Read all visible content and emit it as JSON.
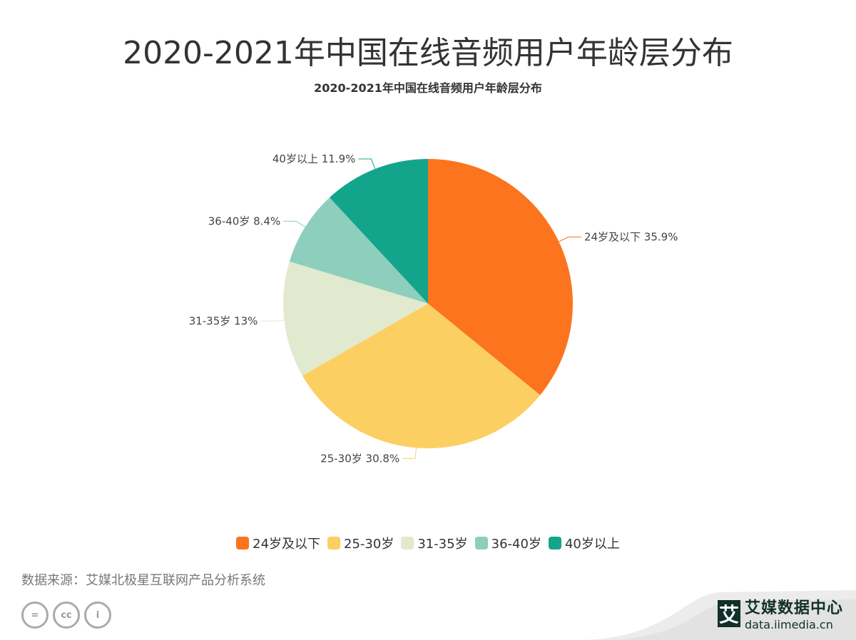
{
  "title": "2020-2021年中国在线音频用户年龄层分布",
  "chart_data": {
    "type": "pie",
    "title": "2020-2021年中国在线音频用户年龄层分布",
    "categories": [
      "24岁及以下",
      "25-30岁",
      "31-35岁",
      "36-40岁",
      "40岁以上"
    ],
    "values": [
      35.9,
      30.8,
      13,
      8.4,
      11.9
    ],
    "labels": [
      "24岁及以下 35.9%",
      "25-30岁 30.8%",
      "31-35岁 13%",
      "36-40岁 8.4%",
      "40岁以上 11.9%"
    ],
    "colors": [
      "#fd741e",
      "#fccf62",
      "#e1eace",
      "#8dcfbc",
      "#13a58b"
    ],
    "legend_position": "bottom"
  },
  "footer": {
    "source": "数据来源：艾媒北极星互联网产品分析系统",
    "cc_icons": [
      "equals-icon",
      "cc-icon",
      "person-icon"
    ],
    "cc_text": [
      "=",
      "cc",
      "i"
    ],
    "logo_mark": "艾",
    "logo_name": "艾媒数据中心",
    "logo_url": "data.iimedia.cn"
  }
}
